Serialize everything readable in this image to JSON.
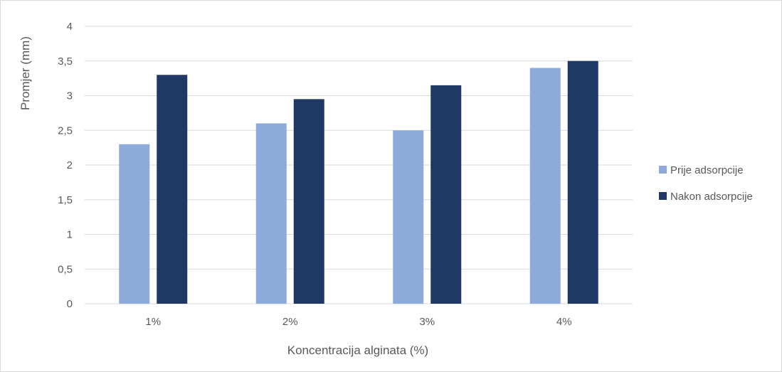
{
  "chart_data": {
    "type": "bar",
    "title": "",
    "xlabel": "Koncentracija alginata (%)",
    "ylabel": "Promjer (mm)",
    "categories": [
      "1%",
      "2%",
      "3%",
      "4%"
    ],
    "series": [
      {
        "name": "Prije adsorpcije",
        "color": "#8eaadb",
        "values": [
          2.3,
          2.6,
          2.5,
          3.4
        ]
      },
      {
        "name": "Nakon adsorpcije",
        "color": "#1f3864",
        "values": [
          3.3,
          2.95,
          3.15,
          3.5
        ]
      }
    ],
    "ylim": [
      0,
      4
    ],
    "yticks": [
      "0",
      "0,5",
      "1",
      "1,5",
      "2",
      "2,5",
      "3",
      "3,5",
      "4"
    ],
    "grid": true,
    "legend_position": "right",
    "colors": {
      "gridline": "#d9d9d9",
      "text": "#595959"
    }
  }
}
